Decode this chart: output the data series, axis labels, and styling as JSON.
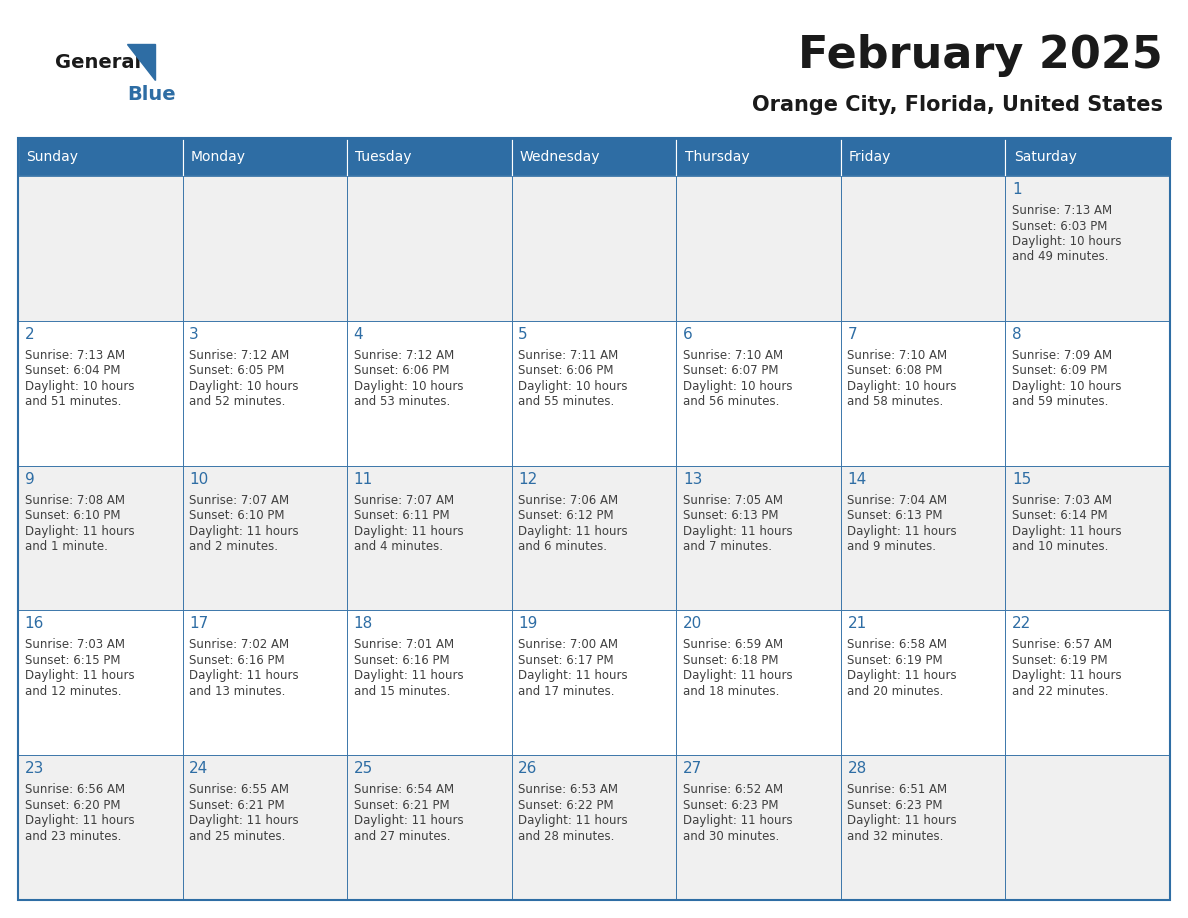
{
  "title": "February 2025",
  "subtitle": "Orange City, Florida, United States",
  "header_bg": "#2E6DA4",
  "header_text_color": "#FFFFFF",
  "cell_bg_odd": "#F0F0F0",
  "cell_bg_even": "#FFFFFF",
  "day_number_color": "#2E6DA4",
  "info_text_color": "#404040",
  "border_color": "#2E6DA4",
  "days_of_week": [
    "Sunday",
    "Monday",
    "Tuesday",
    "Wednesday",
    "Thursday",
    "Friday",
    "Saturday"
  ],
  "weeks": [
    [
      null,
      null,
      null,
      null,
      null,
      null,
      1
    ],
    [
      2,
      3,
      4,
      5,
      6,
      7,
      8
    ],
    [
      9,
      10,
      11,
      12,
      13,
      14,
      15
    ],
    [
      16,
      17,
      18,
      19,
      20,
      21,
      22
    ],
    [
      23,
      24,
      25,
      26,
      27,
      28,
      null
    ]
  ],
  "sunrise": {
    "1": "7:13 AM",
    "2": "7:13 AM",
    "3": "7:12 AM",
    "4": "7:12 AM",
    "5": "7:11 AM",
    "6": "7:10 AM",
    "7": "7:10 AM",
    "8": "7:09 AM",
    "9": "7:08 AM",
    "10": "7:07 AM",
    "11": "7:07 AM",
    "12": "7:06 AM",
    "13": "7:05 AM",
    "14": "7:04 AM",
    "15": "7:03 AM",
    "16": "7:03 AM",
    "17": "7:02 AM",
    "18": "7:01 AM",
    "19": "7:00 AM",
    "20": "6:59 AM",
    "21": "6:58 AM",
    "22": "6:57 AM",
    "23": "6:56 AM",
    "24": "6:55 AM",
    "25": "6:54 AM",
    "26": "6:53 AM",
    "27": "6:52 AM",
    "28": "6:51 AM"
  },
  "sunset": {
    "1": "6:03 PM",
    "2": "6:04 PM",
    "3": "6:05 PM",
    "4": "6:06 PM",
    "5": "6:06 PM",
    "6": "6:07 PM",
    "7": "6:08 PM",
    "8": "6:09 PM",
    "9": "6:10 PM",
    "10": "6:10 PM",
    "11": "6:11 PM",
    "12": "6:12 PM",
    "13": "6:13 PM",
    "14": "6:13 PM",
    "15": "6:14 PM",
    "16": "6:15 PM",
    "17": "6:16 PM",
    "18": "6:16 PM",
    "19": "6:17 PM",
    "20": "6:18 PM",
    "21": "6:19 PM",
    "22": "6:19 PM",
    "23": "6:20 PM",
    "24": "6:21 PM",
    "25": "6:21 PM",
    "26": "6:22 PM",
    "27": "6:23 PM",
    "28": "6:23 PM"
  },
  "daylight": {
    "1": "10 hours and 49 minutes.",
    "2": "10 hours and 51 minutes.",
    "3": "10 hours and 52 minutes.",
    "4": "10 hours and 53 minutes.",
    "5": "10 hours and 55 minutes.",
    "6": "10 hours and 56 minutes.",
    "7": "10 hours and 58 minutes.",
    "8": "10 hours and 59 minutes.",
    "9": "11 hours and 1 minute.",
    "10": "11 hours and 2 minutes.",
    "11": "11 hours and 4 minutes.",
    "12": "11 hours and 6 minutes.",
    "13": "11 hours and 7 minutes.",
    "14": "11 hours and 9 minutes.",
    "15": "11 hours and 10 minutes.",
    "16": "11 hours and 12 minutes.",
    "17": "11 hours and 13 minutes.",
    "18": "11 hours and 15 minutes.",
    "19": "11 hours and 17 minutes.",
    "20": "11 hours and 18 minutes.",
    "21": "11 hours and 20 minutes.",
    "22": "11 hours and 22 minutes.",
    "23": "11 hours and 23 minutes.",
    "24": "11 hours and 25 minutes.",
    "25": "11 hours and 27 minutes.",
    "26": "11 hours and 28 minutes.",
    "27": "11 hours and 30 minutes.",
    "28": "11 hours and 32 minutes."
  },
  "logo_general_color": "#1a1a1a",
  "logo_blue_color": "#2E6DA4",
  "title_fontsize": 32,
  "subtitle_fontsize": 15,
  "header_fontsize": 10,
  "day_number_fontsize": 11,
  "info_fontsize": 8.5
}
